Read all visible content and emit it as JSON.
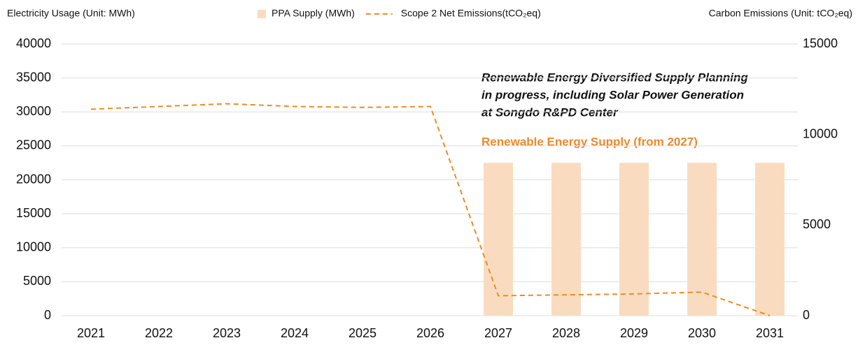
{
  "chart_data": {
    "type": "bar-line",
    "ylabel": "Electricity Usage (Unit: MWh)",
    "y2label": "Carbon Emissions (Unit: tCO₂eq)",
    "annotations": [
      "Renewable Energy Diversified Supply Planning",
      "in progress, including Solar Power Generation",
      "at Songdo R&PD Center"
    ],
    "highlight": "Renewable Energy Supply (from 2027)",
    "categories": [
      "2021",
      "2022",
      "2023",
      "2024",
      "2025",
      "2026",
      "2027",
      "2028",
      "2029",
      "2030",
      "2031"
    ],
    "series": [
      {
        "name": "PPA Supply (MWh)",
        "type": "bar",
        "color": "#f9dcbf",
        "values": [
          null,
          null,
          null,
          null,
          null,
          null,
          22500,
          22500,
          22500,
          22500,
          22500
        ]
      },
      {
        "name": "Scope 2 Net Emissions(tCO₂eq)",
        "type": "line",
        "axis": "y2",
        "color": "#f08a24",
        "dashed": true,
        "values": [
          11400,
          11550,
          11700,
          11550,
          11500,
          11550,
          1100,
          1150,
          1200,
          1300,
          0
        ]
      }
    ],
    "ylim": [
      0,
      40000
    ],
    "yticks": [
      0,
      5000,
      10000,
      15000,
      20000,
      25000,
      30000,
      35000,
      40000
    ],
    "y2lim": [
      0,
      15000
    ],
    "y2ticks": [
      0,
      5000,
      10000,
      15000
    ],
    "grid": true
  }
}
